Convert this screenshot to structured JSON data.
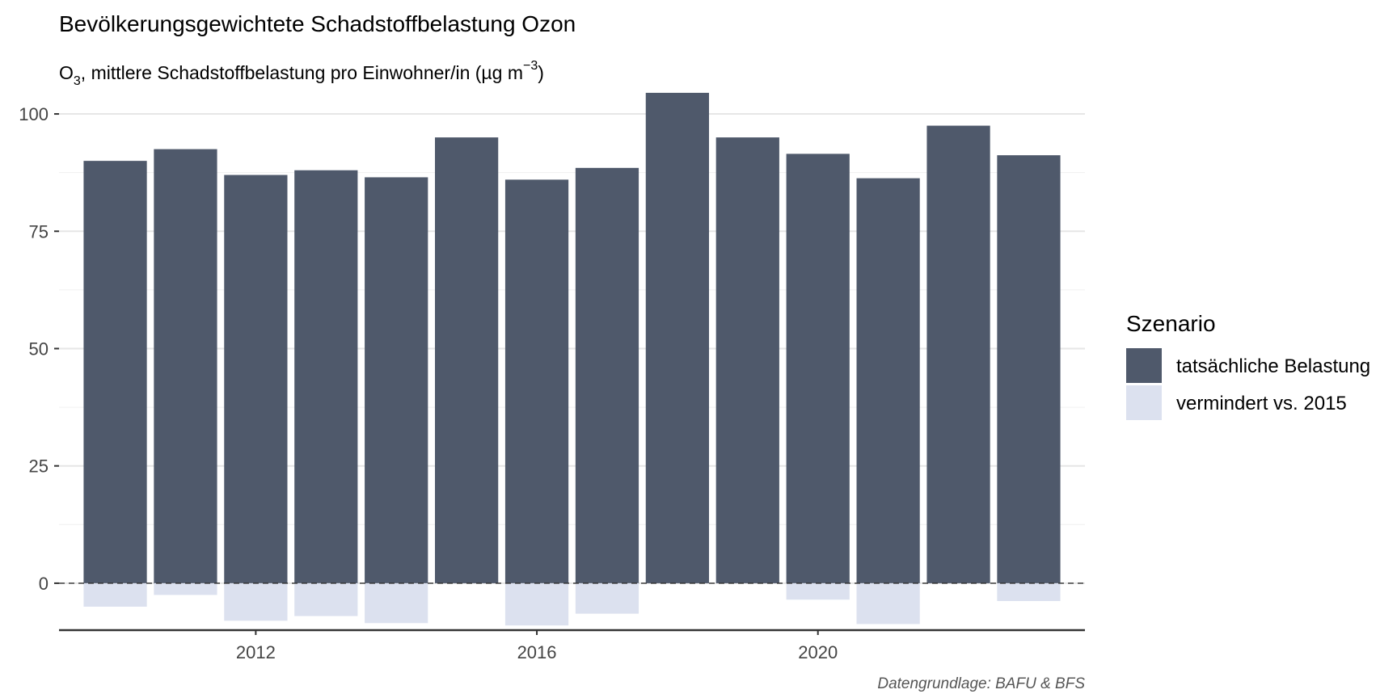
{
  "chart_data": {
    "type": "bar",
    "title": "Bevölkerungsgewichtete Schadstoffbelastung Ozon",
    "subtitle": {
      "prefix": "O",
      "subscript": "3",
      "middle": ", mittlere Schadstoffbelastung pro Einwohner/in (µg m",
      "superscript": "−3",
      "suffix": ")"
    },
    "caption": "Datengrundlage: BAFU & BFS",
    "x": [
      2010,
      2011,
      2012,
      2013,
      2014,
      2015,
      2016,
      2017,
      2018,
      2019,
      2020,
      2021,
      2022,
      2023
    ],
    "xlim": [
      2009.2,
      2023.8
    ],
    "x_ticks": [
      2012,
      2016,
      2020
    ],
    "ylim": [
      -10,
      105
    ],
    "y_ticks": [
      0,
      25,
      50,
      75,
      100
    ],
    "reference_line": 0,
    "grid": true,
    "legend": {
      "title": "Szenario",
      "position": "right"
    },
    "series": [
      {
        "name": "tatsächliche Belastung",
        "color": "#4f596b",
        "values": [
          90,
          92.5,
          87,
          88,
          86.5,
          95,
          86,
          88.5,
          104.5,
          95,
          91.5,
          86.3,
          97.5,
          91.2
        ]
      },
      {
        "name": "vermindert vs. 2015",
        "color": "#dce1ef",
        "values": [
          -5,
          -2.5,
          -8,
          -7,
          -8.5,
          0,
          -9,
          -6.5,
          0,
          0,
          -3.5,
          -8.7,
          0,
          -3.8
        ]
      }
    ]
  }
}
